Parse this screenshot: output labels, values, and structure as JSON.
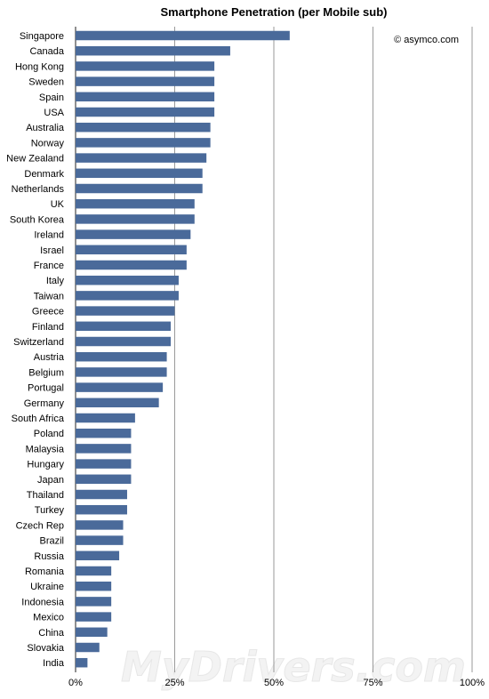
{
  "chart_data": {
    "type": "bar",
    "orientation": "horizontal",
    "title": "Smartphone Penetration (per Mobile sub)",
    "credit": "© asymco.com",
    "watermark": "MyDrivers.com",
    "categories": [
      "Singapore",
      "Canada",
      "Hong Kong",
      "Sweden",
      "Spain",
      "USA",
      "Australia",
      "Norway",
      "New Zealand",
      "Denmark",
      "Netherlands",
      "UK",
      "South Korea",
      "Ireland",
      "Israel",
      "France",
      "Italy",
      "Taiwan",
      "Greece",
      "Finland",
      "Switzerland",
      "Austria",
      "Belgium",
      "Portugal",
      "Germany",
      "South Africa",
      "Poland",
      "Malaysia",
      "Hungary",
      "Japan",
      "Thailand",
      "Turkey",
      "Czech Rep",
      "Brazil",
      "Russia",
      "Romania",
      "Ukraine",
      "Indonesia",
      "Mexico",
      "China",
      "Slovakia",
      "India"
    ],
    "values": [
      54,
      39,
      35,
      35,
      35,
      35,
      34,
      34,
      33,
      32,
      32,
      30,
      30,
      29,
      28,
      28,
      26,
      26,
      25,
      24,
      24,
      23,
      23,
      22,
      21,
      15,
      14,
      14,
      14,
      14,
      13,
      13,
      12,
      12,
      11,
      9,
      9,
      9,
      9,
      8,
      6,
      3
    ],
    "xlim": [
      0,
      100
    ],
    "xticks": [
      0,
      25,
      50,
      75,
      100
    ],
    "xtick_labels": [
      "0%",
      "25%",
      "50%",
      "75%",
      "100%"
    ],
    "xlabel": "",
    "ylabel": "",
    "grid": "vertical",
    "bar_color": "#4a6a9a"
  }
}
